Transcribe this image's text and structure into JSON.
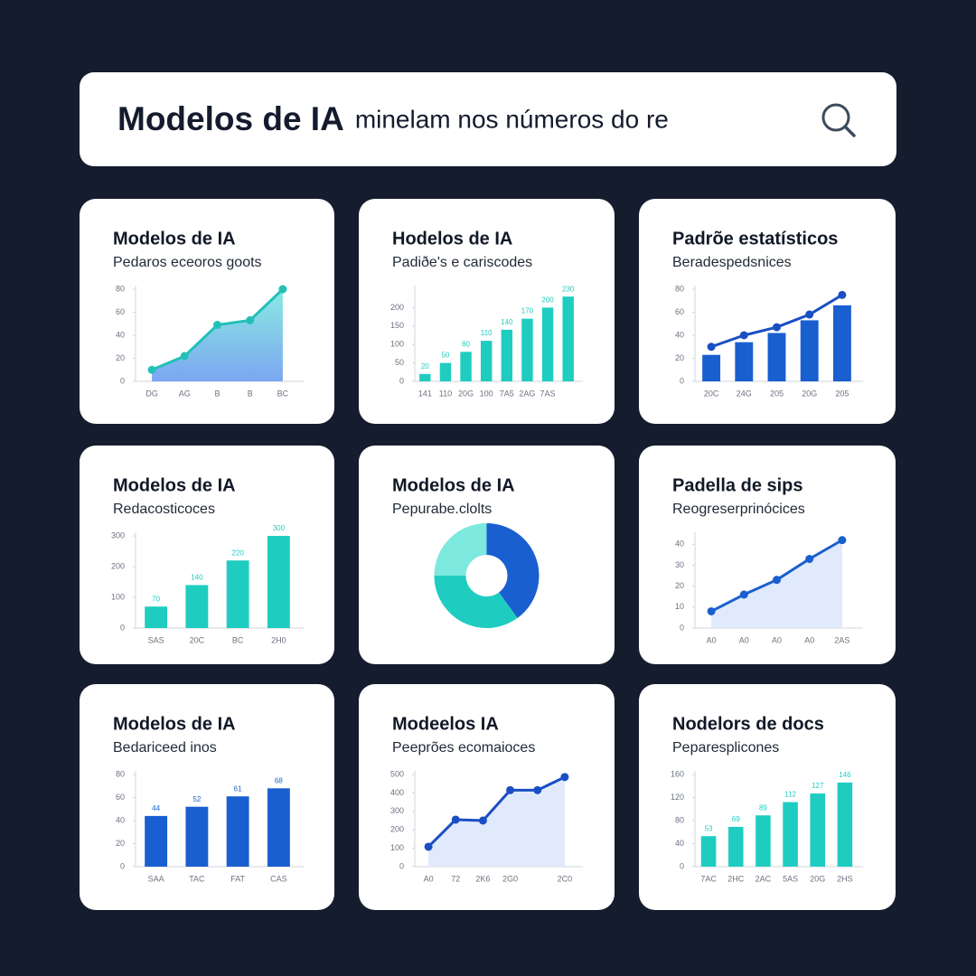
{
  "header": {
    "title_bold": "Modelos de IA",
    "title_rest": "minelam nos números do re"
  },
  "chart_data": [
    {
      "type": "area",
      "title": "Modelos de IA",
      "subtitle": "Pedaros eceoros goots",
      "categories": [
        "DG",
        "AG",
        "B",
        "B",
        "BC"
      ],
      "values": [
        10,
        22,
        49,
        53,
        80
      ],
      "color": "#22c0b8",
      "area_color": [
        "#7de8de",
        "#6d9cf0"
      ],
      "ylim": [
        0,
        80
      ],
      "yticks": [
        0,
        20,
        40,
        60,
        80
      ]
    },
    {
      "type": "bar",
      "title": "Hodelos de IA",
      "subtitle": "Padiðe's e cariscodes",
      "categories": [
        "141",
        "110",
        "20G",
        "100",
        "7A5",
        "2AG",
        "7AS",
        null
      ],
      "values": [
        20,
        50,
        80,
        110,
        140,
        170,
        200,
        230
      ],
      "color": "#1fcdc0",
      "data_labels": true,
      "ylim": [
        0,
        250
      ],
      "yticks": [
        0,
        50,
        100,
        150,
        200
      ]
    },
    {
      "type": "combo",
      "title": "Padrõe estatísticos",
      "subtitle": "Beradespedsnices",
      "categories": [
        "20C",
        "24G",
        "205",
        "20G",
        "205"
      ],
      "series": [
        {
          "type": "bar",
          "color": "#1a5fd0",
          "values": [
            23,
            34,
            42,
            53,
            66
          ]
        },
        {
          "type": "line",
          "color": "#1a4fc4",
          "values": [
            30,
            40,
            47,
            58,
            75
          ]
        }
      ],
      "ylim": [
        0,
        80
      ],
      "yticks": [
        0,
        20,
        40,
        60,
        80
      ]
    },
    {
      "type": "bar",
      "title": "Modelos de IA",
      "subtitle": "Redacosticoces",
      "categories": [
        "SAS",
        "20C",
        "BC",
        "2H0"
      ],
      "values": [
        70,
        140,
        220,
        300
      ],
      "color": "#1fcdc0",
      "data_labels": true,
      "ylim": [
        0,
        300
      ],
      "yticks": [
        0,
        100,
        200,
        300
      ]
    },
    {
      "type": "donut",
      "title": "Modelos de IA",
      "subtitle": "Pepurabe.clolts",
      "values": [
        40,
        35,
        25
      ],
      "colors": [
        "#1a5fd0",
        "#1fcdc0",
        "#7de8de"
      ]
    },
    {
      "type": "area",
      "title": "Padella de sips",
      "subtitle": "Reogreserprinócices",
      "categories": [
        "A0",
        "A0",
        "A0",
        "A0",
        "2AS"
      ],
      "values": [
        8,
        16,
        23,
        33,
        42
      ],
      "color": "#1a5fd0",
      "area_color": [
        "#dce8fb",
        "#dce8fb"
      ],
      "ylim": [
        0,
        44
      ],
      "yticks": [
        0,
        10,
        20,
        30,
        40
      ]
    },
    {
      "type": "bar",
      "title": "Modelos de IA",
      "subtitle": "Bedariceed inos",
      "categories": [
        "SAA",
        "TAC",
        "FAT",
        "CAS"
      ],
      "values": [
        44,
        52,
        61,
        68
      ],
      "color": "#1a5fd0",
      "data_labels": true,
      "ylim": [
        0,
        80
      ],
      "yticks": [
        0,
        20,
        40,
        60,
        80
      ]
    },
    {
      "type": "area",
      "title": "Modeelos IA",
      "subtitle": "Peeprões ecomaioces",
      "categories": [
        "A0",
        "72",
        "2K6",
        "2G0",
        null,
        "2C0"
      ],
      "values": [
        108,
        255,
        250,
        415,
        415,
        486
      ],
      "color": "#1a4fc4",
      "area_color": [
        "#dce8fb",
        "#dce8fb"
      ],
      "ylim": [
        0,
        500
      ],
      "yticks": [
        0,
        100,
        200,
        300,
        400,
        500
      ]
    },
    {
      "type": "bar",
      "title": "Nodelors de docs",
      "subtitle": "Peparesplicones",
      "categories": [
        "7AC",
        "2HC",
        "2AC",
        "5AS",
        "20G",
        "2HS"
      ],
      "values": [
        53,
        69,
        89,
        112,
        127,
        146
      ],
      "color": "#1fcdc0",
      "data_labels": true,
      "ylim": [
        0,
        160
      ],
      "yticks": [
        0,
        40,
        80,
        120,
        160
      ]
    }
  ]
}
